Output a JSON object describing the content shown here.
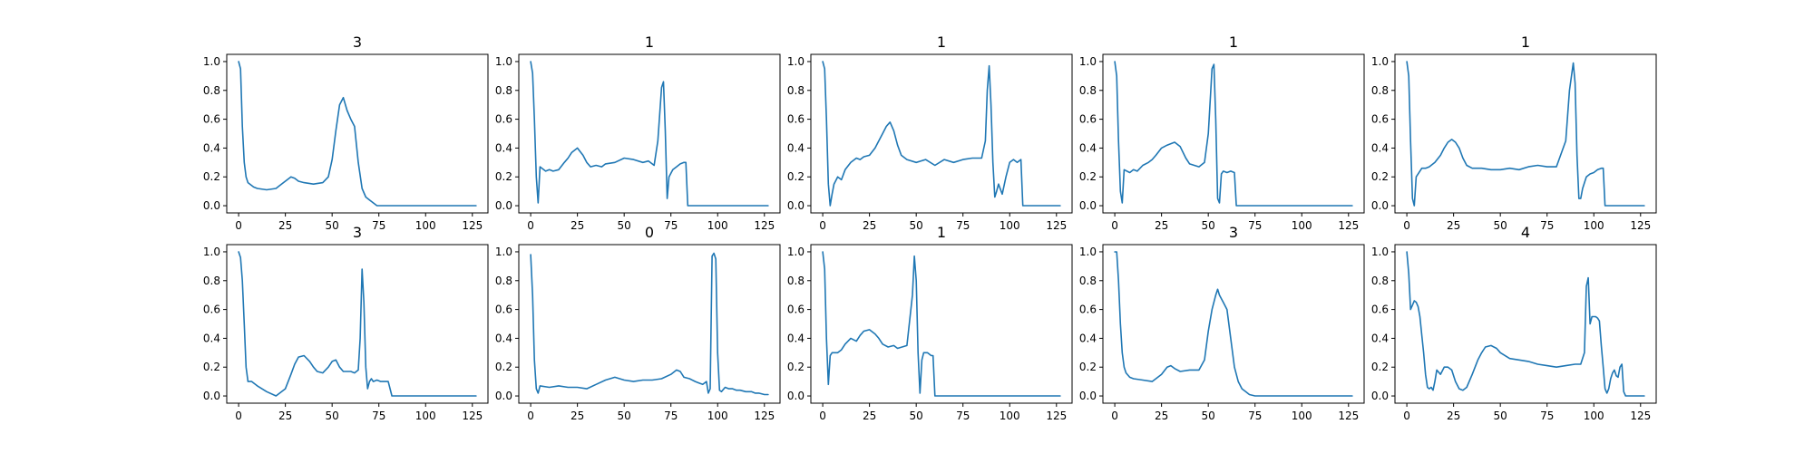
{
  "figure": {
    "line_color": "#1f77b4",
    "xlim": [
      -6.35,
      133.35
    ],
    "ylim": [
      -0.05,
      1.05
    ],
    "xticks": [
      0,
      25,
      50,
      75,
      100,
      125
    ],
    "yticks": [
      0.0,
      0.2,
      0.4,
      0.6,
      0.8,
      1.0
    ],
    "ytick_labels": [
      "0.0",
      "0.2",
      "0.4",
      "0.6",
      "0.8",
      "1.0"
    ]
  },
  "chart_data": [
    {
      "type": "line",
      "title": "3",
      "x": [
        0,
        1,
        2,
        3,
        4,
        5,
        8,
        10,
        15,
        20,
        22,
        25,
        28,
        30,
        32,
        35,
        40,
        45,
        48,
        50,
        52,
        54,
        56,
        58,
        60,
        62,
        64,
        66,
        68,
        70,
        72,
        74,
        76,
        80,
        127
      ],
      "y": [
        1.0,
        0.95,
        0.55,
        0.3,
        0.2,
        0.16,
        0.13,
        0.12,
        0.11,
        0.12,
        0.14,
        0.17,
        0.2,
        0.19,
        0.17,
        0.16,
        0.15,
        0.16,
        0.2,
        0.32,
        0.52,
        0.7,
        0.75,
        0.66,
        0.6,
        0.55,
        0.3,
        0.12,
        0.06,
        0.04,
        0.02,
        0.0,
        0.0,
        0.0,
        0.0
      ]
    },
    {
      "type": "line",
      "title": "1",
      "x": [
        0,
        1,
        2,
        3,
        4,
        5,
        8,
        10,
        12,
        15,
        18,
        20,
        22,
        25,
        28,
        30,
        32,
        35,
        38,
        40,
        45,
        50,
        55,
        60,
        63,
        66,
        68,
        70,
        71,
        72,
        73,
        74,
        76,
        78,
        80,
        82,
        83,
        84,
        127
      ],
      "y": [
        1.0,
        0.92,
        0.6,
        0.2,
        0.02,
        0.27,
        0.24,
        0.25,
        0.24,
        0.25,
        0.3,
        0.33,
        0.37,
        0.4,
        0.35,
        0.3,
        0.27,
        0.28,
        0.27,
        0.29,
        0.3,
        0.33,
        0.32,
        0.3,
        0.31,
        0.28,
        0.45,
        0.82,
        0.86,
        0.52,
        0.05,
        0.2,
        0.25,
        0.27,
        0.29,
        0.3,
        0.3,
        0.0,
        0.0
      ]
    },
    {
      "type": "line",
      "title": "1",
      "x": [
        0,
        1,
        2,
        3,
        4,
        5,
        6,
        8,
        10,
        12,
        15,
        18,
        20,
        22,
        25,
        28,
        30,
        32,
        34,
        36,
        38,
        40,
        42,
        45,
        50,
        55,
        60,
        65,
        70,
        75,
        80,
        85,
        87,
        88,
        89,
        90,
        91,
        92,
        93,
        94,
        96,
        98,
        100,
        102,
        104,
        106,
        107,
        108,
        127
      ],
      "y": [
        1.0,
        0.95,
        0.6,
        0.15,
        0.0,
        0.08,
        0.15,
        0.2,
        0.18,
        0.25,
        0.3,
        0.33,
        0.32,
        0.34,
        0.35,
        0.4,
        0.45,
        0.5,
        0.55,
        0.58,
        0.52,
        0.42,
        0.35,
        0.32,
        0.3,
        0.32,
        0.28,
        0.32,
        0.3,
        0.32,
        0.33,
        0.33,
        0.45,
        0.8,
        0.97,
        0.7,
        0.3,
        0.06,
        0.1,
        0.15,
        0.08,
        0.2,
        0.3,
        0.32,
        0.3,
        0.32,
        0.0,
        0.0,
        0.0
      ]
    },
    {
      "type": "line",
      "title": "1",
      "x": [
        0,
        1,
        2,
        3,
        4,
        5,
        8,
        10,
        12,
        15,
        18,
        20,
        22,
        25,
        28,
        30,
        32,
        35,
        38,
        40,
        45,
        48,
        50,
        52,
        53,
        54,
        55,
        56,
        57,
        58,
        60,
        62,
        64,
        65,
        66,
        127
      ],
      "y": [
        1.0,
        0.9,
        0.45,
        0.1,
        0.02,
        0.25,
        0.23,
        0.25,
        0.24,
        0.28,
        0.3,
        0.32,
        0.35,
        0.4,
        0.42,
        0.43,
        0.44,
        0.41,
        0.33,
        0.29,
        0.27,
        0.3,
        0.5,
        0.95,
        0.98,
        0.6,
        0.05,
        0.02,
        0.22,
        0.24,
        0.23,
        0.24,
        0.23,
        0.0,
        0.0,
        0.0
      ]
    },
    {
      "type": "line",
      "title": "1",
      "x": [
        0,
        1,
        2,
        3,
        4,
        5,
        8,
        10,
        12,
        15,
        18,
        20,
        22,
        24,
        26,
        28,
        30,
        32,
        35,
        40,
        45,
        50,
        55,
        60,
        65,
        70,
        75,
        80,
        85,
        87,
        89,
        90,
        91,
        92,
        93,
        94,
        96,
        98,
        100,
        102,
        104,
        105,
        106,
        127
      ],
      "y": [
        1.0,
        0.9,
        0.45,
        0.05,
        0.0,
        0.2,
        0.26,
        0.26,
        0.27,
        0.3,
        0.35,
        0.4,
        0.44,
        0.46,
        0.44,
        0.4,
        0.33,
        0.28,
        0.26,
        0.26,
        0.25,
        0.25,
        0.26,
        0.25,
        0.27,
        0.28,
        0.27,
        0.27,
        0.45,
        0.8,
        0.99,
        0.85,
        0.35,
        0.05,
        0.05,
        0.12,
        0.2,
        0.22,
        0.23,
        0.25,
        0.26,
        0.26,
        0.0,
        0.0
      ]
    },
    {
      "type": "line",
      "title": "3",
      "x": [
        0,
        1,
        2,
        3,
        4,
        5,
        7,
        10,
        15,
        20,
        25,
        28,
        30,
        32,
        35,
        38,
        40,
        42,
        45,
        48,
        50,
        52,
        54,
        56,
        58,
        60,
        62,
        64,
        65,
        66,
        67,
        68,
        69,
        70,
        71,
        72,
        74,
        76,
        78,
        80,
        82,
        127
      ],
      "y": [
        1.0,
        0.96,
        0.8,
        0.5,
        0.2,
        0.1,
        0.1,
        0.07,
        0.03,
        0.0,
        0.05,
        0.15,
        0.22,
        0.27,
        0.28,
        0.24,
        0.2,
        0.17,
        0.16,
        0.2,
        0.24,
        0.25,
        0.2,
        0.17,
        0.17,
        0.17,
        0.16,
        0.18,
        0.4,
        0.88,
        0.65,
        0.2,
        0.05,
        0.1,
        0.12,
        0.1,
        0.11,
        0.1,
        0.1,
        0.1,
        0.0,
        0.0
      ]
    },
    {
      "type": "line",
      "title": "0",
      "x": [
        0,
        1,
        2,
        3,
        4,
        5,
        10,
        15,
        20,
        25,
        30,
        35,
        40,
        45,
        50,
        55,
        60,
        65,
        70,
        75,
        78,
        80,
        82,
        85,
        88,
        90,
        92,
        94,
        95,
        96,
        97,
        98,
        99,
        100,
        101,
        102,
        104,
        106,
        108,
        110,
        112,
        115,
        118,
        120,
        122,
        125,
        127
      ],
      "y": [
        0.98,
        0.7,
        0.25,
        0.05,
        0.02,
        0.07,
        0.06,
        0.07,
        0.06,
        0.06,
        0.05,
        0.08,
        0.11,
        0.13,
        0.11,
        0.1,
        0.11,
        0.11,
        0.12,
        0.15,
        0.18,
        0.17,
        0.13,
        0.12,
        0.1,
        0.09,
        0.08,
        0.1,
        0.02,
        0.05,
        0.97,
        0.99,
        0.95,
        0.3,
        0.04,
        0.03,
        0.06,
        0.05,
        0.05,
        0.04,
        0.04,
        0.03,
        0.03,
        0.02,
        0.02,
        0.01,
        0.01
      ]
    },
    {
      "type": "line",
      "title": "1",
      "x": [
        0,
        1,
        2,
        3,
        4,
        5,
        8,
        10,
        12,
        15,
        18,
        20,
        22,
        25,
        28,
        30,
        32,
        35,
        38,
        40,
        45,
        48,
        49,
        50,
        51,
        52,
        53,
        54,
        56,
        58,
        59,
        60,
        127
      ],
      "y": [
        1.0,
        0.88,
        0.4,
        0.08,
        0.28,
        0.3,
        0.3,
        0.32,
        0.36,
        0.4,
        0.38,
        0.42,
        0.45,
        0.46,
        0.43,
        0.4,
        0.36,
        0.34,
        0.35,
        0.33,
        0.35,
        0.7,
        0.97,
        0.8,
        0.3,
        0.02,
        0.25,
        0.3,
        0.3,
        0.28,
        0.28,
        0.0,
        0.0
      ]
    },
    {
      "type": "line",
      "title": "3",
      "x": [
        0,
        1,
        2,
        3,
        4,
        5,
        6,
        8,
        10,
        15,
        20,
        25,
        28,
        30,
        32,
        35,
        40,
        45,
        48,
        50,
        52,
        54,
        55,
        56,
        58,
        60,
        62,
        64,
        66,
        68,
        70,
        72,
        75,
        80,
        127
      ],
      "y": [
        1.0,
        1.0,
        0.8,
        0.5,
        0.3,
        0.2,
        0.16,
        0.13,
        0.12,
        0.11,
        0.1,
        0.15,
        0.2,
        0.21,
        0.19,
        0.17,
        0.18,
        0.18,
        0.25,
        0.45,
        0.6,
        0.7,
        0.74,
        0.7,
        0.65,
        0.6,
        0.4,
        0.2,
        0.1,
        0.05,
        0.03,
        0.01,
        0.0,
        0.0,
        0.0
      ]
    },
    {
      "type": "line",
      "title": "4",
      "x": [
        0,
        1,
        2,
        3,
        4,
        5,
        6,
        7,
        8,
        9,
        10,
        11,
        12,
        13,
        14,
        15,
        16,
        18,
        20,
        22,
        24,
        26,
        28,
        30,
        32,
        35,
        38,
        40,
        42,
        45,
        48,
        50,
        55,
        60,
        65,
        70,
        75,
        80,
        85,
        90,
        93,
        95,
        96,
        97,
        98,
        99,
        100,
        101,
        102,
        103,
        104,
        105,
        106,
        107,
        108,
        109,
        110,
        111,
        112,
        113,
        114,
        115,
        116,
        117,
        127
      ],
      "y": [
        1.0,
        0.85,
        0.6,
        0.63,
        0.66,
        0.65,
        0.62,
        0.55,
        0.42,
        0.3,
        0.15,
        0.06,
        0.05,
        0.06,
        0.04,
        0.1,
        0.18,
        0.15,
        0.2,
        0.2,
        0.18,
        0.1,
        0.05,
        0.04,
        0.06,
        0.15,
        0.25,
        0.3,
        0.34,
        0.35,
        0.33,
        0.3,
        0.26,
        0.25,
        0.24,
        0.22,
        0.21,
        0.2,
        0.21,
        0.22,
        0.22,
        0.3,
        0.76,
        0.82,
        0.5,
        0.55,
        0.55,
        0.55,
        0.54,
        0.52,
        0.35,
        0.2,
        0.05,
        0.02,
        0.05,
        0.12,
        0.16,
        0.18,
        0.14,
        0.13,
        0.2,
        0.22,
        0.03,
        0.0,
        0.0
      ]
    }
  ]
}
